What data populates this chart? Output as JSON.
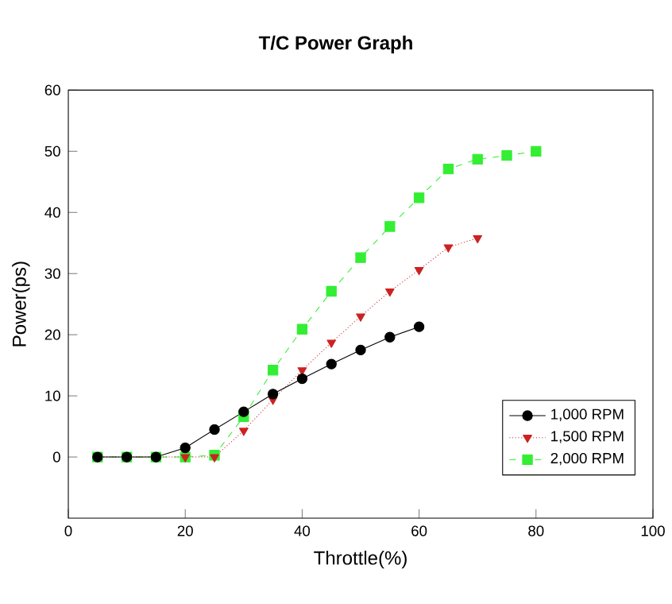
{
  "chart_data": {
    "type": "line",
    "title": "T/C Power Graph",
    "xlabel": "Throttle(%)",
    "ylabel": "Power(ps)",
    "xlim": [
      0,
      100
    ],
    "ylim": [
      -10,
      60
    ],
    "xticks": [
      0,
      20,
      40,
      60,
      80,
      100
    ],
    "yticks": [
      0,
      10,
      20,
      30,
      40,
      50,
      60
    ],
    "legend": "bottom right",
    "grid": false,
    "series": [
      {
        "name": "1,000 RPM",
        "color": "#000000",
        "marker": "circle",
        "line_style": "solid",
        "x": [
          5,
          10,
          15,
          20,
          25,
          30,
          35,
          40,
          45,
          50,
          55,
          60
        ],
        "values": [
          0,
          0,
          0,
          1.5,
          4.5,
          7.4,
          10.3,
          12.8,
          15.2,
          17.5,
          19.6,
          21.3
        ]
      },
      {
        "name": "1,500 RPM",
        "color": "#cc2222",
        "marker": "triangle",
        "line_style": "dotted",
        "x": [
          5,
          10,
          15,
          20,
          25,
          30,
          35,
          40,
          45,
          50,
          55,
          60,
          65,
          70
        ],
        "values": [
          0,
          0,
          0,
          0,
          0,
          4.3,
          9.4,
          14.2,
          18.7,
          23,
          27.1,
          30.6,
          34.3,
          35.8
        ]
      },
      {
        "name": "2,000 RPM",
        "color": "#33ee33",
        "marker": "square",
        "line_style": "dashed",
        "x": [
          5,
          10,
          15,
          20,
          25,
          30,
          35,
          40,
          45,
          50,
          55,
          60,
          65,
          70,
          75,
          80
        ],
        "values": [
          0,
          0,
          0,
          0,
          0.3,
          6.6,
          14.2,
          20.9,
          27.1,
          32.6,
          37.7,
          42.4,
          47.1,
          48.7,
          49.3,
          50
        ]
      }
    ]
  }
}
